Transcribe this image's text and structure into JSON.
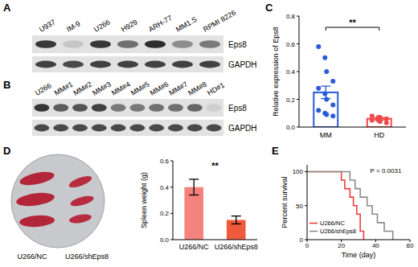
{
  "panel_labels": [
    "A",
    "B",
    "C",
    "D",
    "E"
  ],
  "blots": [
    {
      "lanes": [
        "U937",
        "IM-9",
        "U266",
        "H929",
        "ARH-77",
        "MM1.S",
        "RPMI 8226"
      ],
      "rows": [
        "Eps8",
        "GAPDH"
      ],
      "intensity": [
        [
          0.9,
          0.15,
          0.9,
          0.6,
          0.95,
          0.45,
          0.55
        ],
        [
          0.85,
          0.8,
          0.85,
          0.85,
          0.85,
          0.85,
          0.85
        ]
      ]
    },
    {
      "lanes": [
        "U266",
        "MM#1",
        "MM#2",
        "MM#3",
        "MM#4",
        "MM#5",
        "MM#6",
        "MM#7",
        "MM#8",
        "HD#1"
      ],
      "rows": [
        "Eps8",
        "GAPDH"
      ],
      "intensity": [
        [
          0.9,
          0.7,
          0.75,
          0.85,
          0.55,
          0.55,
          0.6,
          0.6,
          0.65,
          0.1
        ],
        [
          0.8,
          0.8,
          0.8,
          0.8,
          0.8,
          0.8,
          0.8,
          0.8,
          0.8,
          0.8
        ]
      ]
    }
  ],
  "photo": {
    "labels": [
      "U266/NC",
      "U266/shEps8"
    ]
  },
  "chart_data": [
    {
      "type": "bar",
      "ylabel": "Relative expression of Eps8",
      "categories": [
        "MM",
        "HD"
      ],
      "values": [
        0.25,
        0.06
      ],
      "errors": [
        0.045,
        0.01
      ],
      "points": [
        [
          0.58,
          0.5,
          0.4,
          0.33,
          0.28,
          0.24,
          0.2,
          0.16,
          0.12,
          0.1,
          0.09,
          0.08
        ],
        [
          0.08,
          0.07,
          0.07,
          0.06,
          0.05,
          0.05,
          0.04,
          0.03
        ]
      ],
      "colors": [
        "#2a5bd7",
        "#f04848"
      ],
      "ylim": [
        0,
        0.8
      ],
      "yticks": [
        {
          "value": 0,
          "label": "0.0"
        },
        0.2,
        0.4,
        0.6,
        0.8
      ],
      "annotations": [
        "**"
      ]
    },
    {
      "type": "bar",
      "ylabel": "Spleen weight (g)",
      "categories": [
        "U266/NC",
        "U266/shEps8"
      ],
      "values": [
        0.4,
        0.15
      ],
      "errors": [
        0.06,
        0.03
      ],
      "colors": [
        "#f4837d",
        "#f05a3c"
      ],
      "ylim": [
        0,
        0.6
      ],
      "yticks": [
        {
          "value": 0,
          "label": "0.0"
        },
        0.2,
        0.4,
        0.6
      ],
      "annotations": [
        "**"
      ]
    },
    {
      "type": "line",
      "line_style": "step",
      "xlabel": "Time (day)",
      "ylabel": "Percent survival",
      "series": [
        {
          "name": "U266/NC",
          "color": "#f03c3c",
          "x": [
            0,
            20,
            22,
            25,
            27,
            29,
            31,
            33
          ],
          "values": [
            100,
            87.5,
            75,
            62.5,
            50,
            37.5,
            12.5,
            0
          ]
        },
        {
          "name": "U266/shEps8",
          "color": "#8a8a8a",
          "x": [
            0,
            25,
            28,
            31,
            35,
            38,
            41,
            45,
            50
          ],
          "values": [
            100,
            87.5,
            75,
            62.5,
            50,
            37.5,
            25,
            12.5,
            0
          ]
        }
      ],
      "xlim": [
        0,
        60
      ],
      "ylim": [
        0,
        110
      ],
      "xticks": [
        0,
        20,
        40,
        60
      ],
      "yticks": [
        0,
        50,
        100
      ],
      "legend": "lower left",
      "annotations": [
        "P = 0.0031"
      ]
    }
  ]
}
